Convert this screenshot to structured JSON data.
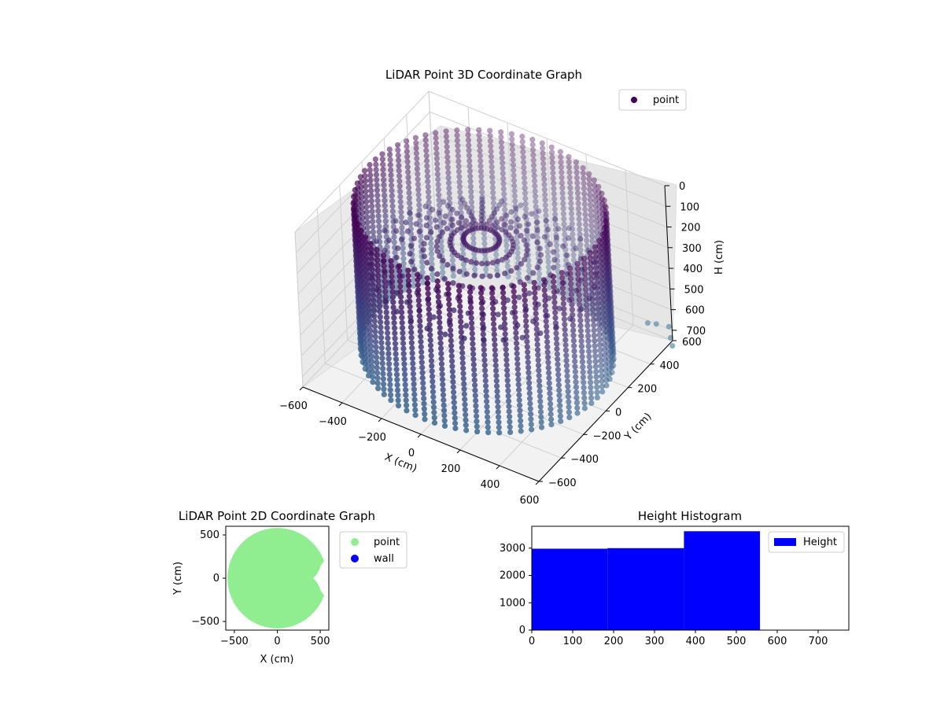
{
  "chart_data": [
    {
      "type": "scatter3d",
      "title": "LiDAR Point 3D Coordinate Graph",
      "xlabel": "X (cm)",
      "ylabel": "Y (cm)",
      "zlabel": "H (cm)",
      "xlim": [
        -600,
        600
      ],
      "ylim": [
        -600,
        600
      ],
      "zlim": [
        0,
        750
      ],
      "z_inverted": true,
      "x_ticks": [
        "−600",
        "−400",
        "−200",
        "0",
        "200",
        "400",
        "600"
      ],
      "y_ticks": [
        "−600",
        "−400",
        "−200",
        "0",
        "200",
        "400",
        "600"
      ],
      "z_ticks": [
        "0",
        "100",
        "200",
        "300",
        "400",
        "500",
        "600",
        "700"
      ],
      "legend": [
        "point"
      ],
      "legend_position": "top-right",
      "colormap": "viridis",
      "series": [
        {
          "name": "point",
          "shape": "cylindrical wall of points",
          "radius": 560,
          "h_range": [
            0,
            700
          ],
          "color": "#440154",
          "extra_points": [
            {
              "x": 500,
              "y": 560,
              "h": 680
            },
            {
              "x": 520,
              "y": 600,
              "h": 700
            },
            {
              "x": 560,
              "y": 640,
              "h": 720
            },
            {
              "x": 590,
              "y": 600,
              "h": 740
            },
            {
              "x": 610,
              "y": 580,
              "h": 760
            }
          ]
        }
      ],
      "grid": true
    },
    {
      "type": "scatter",
      "title": "LiDAR Point 2D Coordinate Graph",
      "xlabel": "X (cm)",
      "ylabel": "Y (cm)",
      "xlim": [
        -600,
        600
      ],
      "ylim": [
        -600,
        600
      ],
      "x_ticks": [
        "−500",
        "0",
        "500"
      ],
      "y_ticks": [
        "−500",
        "0",
        "500"
      ],
      "legend": [
        "point",
        "wall"
      ],
      "legend_position": "right-outside",
      "series": [
        {
          "name": "point",
          "color": "#90ee90",
          "shape": "filled disk, radius 580, notch on right side"
        },
        {
          "name": "wall",
          "color": "#0000ff",
          "values": []
        }
      ]
    },
    {
      "type": "bar",
      "title": "Height Histogram",
      "legend": [
        "Height"
      ],
      "legend_position": "top-right",
      "xlim": [
        0,
        775
      ],
      "ylim": [
        0,
        3800
      ],
      "x_ticks": [
        "0",
        "100",
        "200",
        "300",
        "400",
        "500",
        "600",
        "700"
      ],
      "y_ticks": [
        "0",
        "1000",
        "2000",
        "3000"
      ],
      "color": "#0000ff",
      "series": [
        {
          "name": "Height",
          "bins": [
            {
              "start": 0,
              "end": 185,
              "value": 2980
            },
            {
              "start": 185,
              "end": 372,
              "value": 3000
            },
            {
              "start": 372,
              "end": 558,
              "value": 3620
            }
          ]
        }
      ]
    }
  ]
}
